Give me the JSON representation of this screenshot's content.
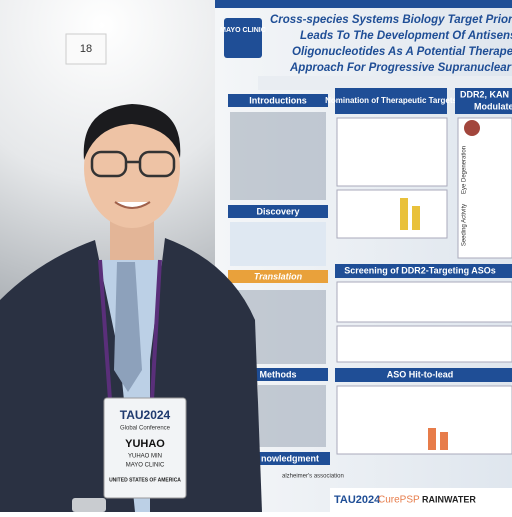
{
  "wall_sign": "18",
  "poster": {
    "logo": "MAYO CLINIC",
    "title_lines": [
      "Cross-species Systems Biology Target Prioriti",
      "Leads To The Development Of Antisense",
      "Oligonucleotides As A Potential Therapeuti",
      "Approach For Progressive Supranuclear Pal"
    ],
    "sections": [
      "Introductions",
      "Nomination of Therapeutic Targets",
      "DDR2, KAN",
      "Modulate",
      "Discovery",
      "Translation",
      "Methods",
      "Screening of DDR2-Targeting ASOs",
      "ASO Hit-to-lead",
      "nowledgment"
    ],
    "side_labels": [
      "Eye Degeneration",
      "Seeding Activity"
    ],
    "sponsors": [
      "TAU2024",
      "CurePSP",
      "RAINWATER",
      "alzheimer's association"
    ]
  },
  "badge": {
    "event": "TAU2024",
    "subtitle": "Global Conference",
    "name": "YUHAO",
    "full_name": "YUHAO MIN",
    "org": "MAYO CLINIC",
    "country": "UNITED STATES OF AMERICA"
  }
}
